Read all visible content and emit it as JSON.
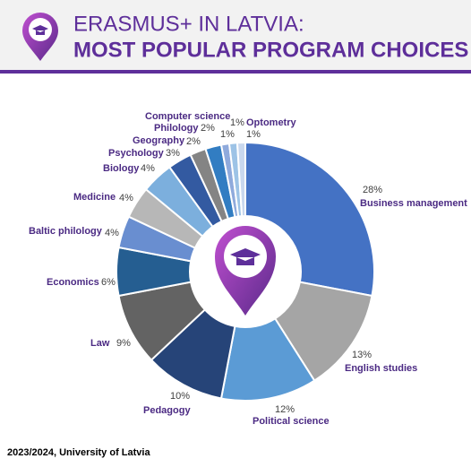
{
  "chart_data": {
    "type": "donut",
    "title": "ERASMUS+ IN LATVIA:",
    "subtitle": "MOST POPULAR PROGRAM CHOICES",
    "note": "2023/2024, University of Latvia",
    "categories": [
      "Business management",
      "English studies",
      "Political science",
      "Pedagogy",
      "Law",
      "Economics",
      "Baltic philology",
      "Medicine",
      "Biology",
      "Psychology",
      "Geography",
      "Philology",
      "Computer science",
      null,
      "Optometry"
    ],
    "values": [
      28,
      13,
      12,
      10,
      9,
      6,
      4,
      4,
      4,
      3,
      2,
      2,
      1,
      1,
      1
    ],
    "value_labels": [
      "28%",
      "13%",
      "12%",
      "10%",
      "9%",
      "6%",
      "4%",
      "4%",
      "4%",
      "3%",
      "2%",
      "2%",
      "1%",
      "1%",
      "1%"
    ],
    "colors": [
      "#4472c4",
      "#a5a5a5",
      "#5b9bd5",
      "#264478",
      "#636363",
      "#255e91",
      "#698ed0",
      "#b7b7b7",
      "#7cafdd",
      "#335aa1",
      "#848484",
      "#327dc2",
      "#8faadc",
      "#9dc3e6",
      "#c9d8ee"
    ]
  }
}
